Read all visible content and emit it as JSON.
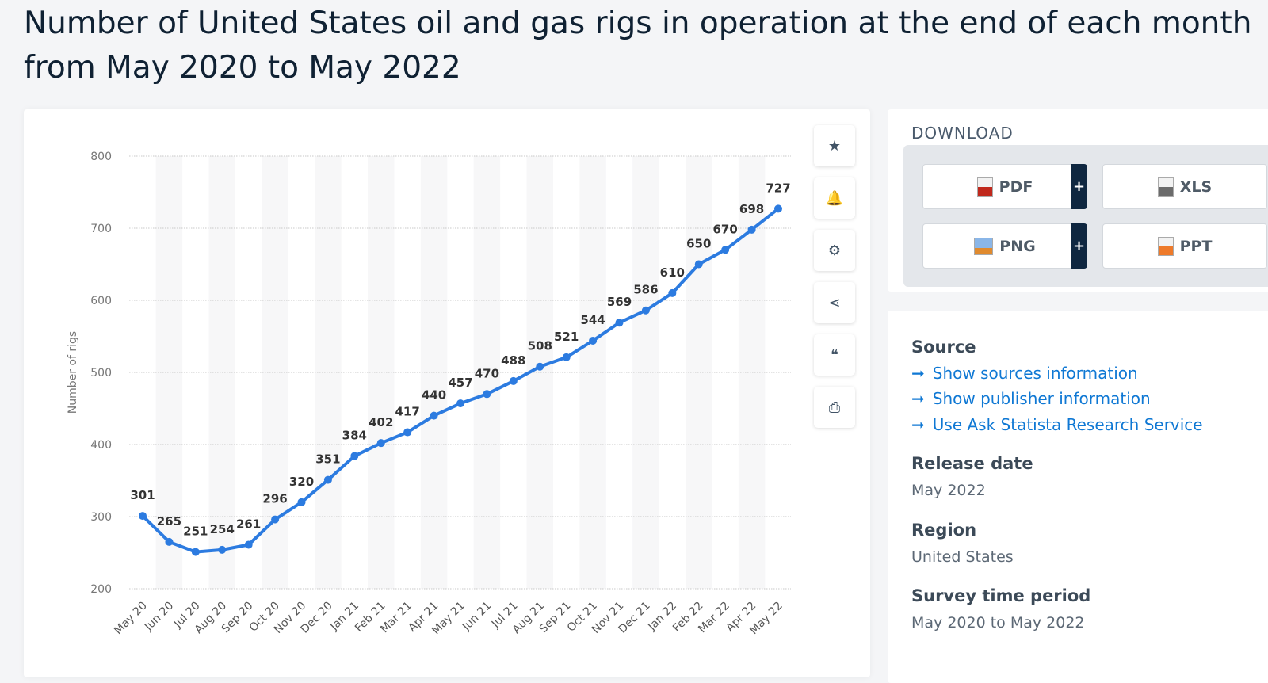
{
  "title": [
    "Number of United States oil and gas rigs in operation at the end of each month",
    "from May 2020 to May 2022"
  ],
  "chart_data": {
    "type": "line",
    "title": "",
    "ylabel": "Number of rigs",
    "xlabel": "",
    "ylim": [
      200,
      800
    ],
    "yticks": [
      200,
      300,
      400,
      500,
      600,
      700,
      800
    ],
    "grid": true,
    "color": "#2c7be0",
    "categories": [
      "May 20",
      "Jun 20",
      "Jul 20",
      "Aug 20",
      "Sep 20",
      "Oct 20",
      "Nov 20",
      "Dec 20",
      "Jan 21",
      "Feb 21",
      "Mar 21",
      "Apr 21",
      "May 21",
      "Jun 21",
      "Jul 21",
      "Aug 21",
      "Sep 21",
      "Oct 21",
      "Nov 21",
      "Dec 21",
      "Jan 22",
      "Feb 22",
      "Mar 22",
      "Apr 22",
      "May 22"
    ],
    "values": [
      301,
      265,
      251,
      254,
      261,
      296,
      320,
      351,
      384,
      402,
      417,
      440,
      457,
      470,
      488,
      508,
      521,
      544,
      569,
      586,
      610,
      650,
      670,
      698,
      727
    ]
  },
  "toolbar": {
    "icons": [
      "star-icon",
      "bell-icon",
      "gear-icon",
      "share-icon",
      "quote-icon",
      "print-icon"
    ],
    "glyphs": [
      "★",
      "🔔",
      "⚙",
      "⋖",
      "❝",
      "⎙"
    ]
  },
  "download": {
    "heading": "DOWNLOAD",
    "buttons": [
      {
        "label": "PDF",
        "color": "#c0281c"
      },
      {
        "label": "XLS",
        "color": "#6b6b6b"
      },
      {
        "label": "PNG",
        "color": "#e08a2e"
      },
      {
        "label": "PPT",
        "color": "#ee7a2a"
      }
    ],
    "plus": "+"
  },
  "info": {
    "source_heading": "Source",
    "links": [
      "Show sources information",
      "Show publisher information",
      "Use Ask Statista Research Service"
    ],
    "arrow": "➞",
    "release_heading": "Release date",
    "release_value": "May 2022",
    "region_heading": "Region",
    "region_value": "United States",
    "period_heading": "Survey time period",
    "period_value": "May 2020 to May 2022"
  }
}
